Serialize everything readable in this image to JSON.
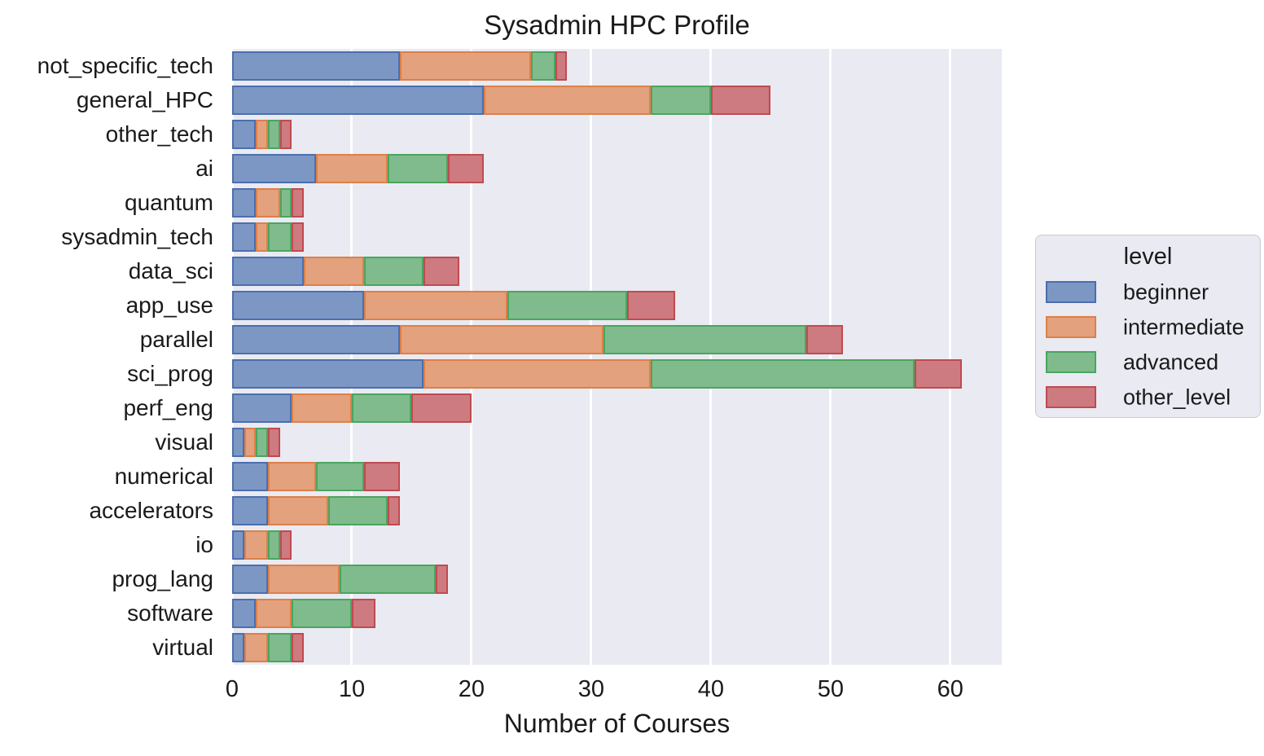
{
  "chart_data": {
    "type": "bar",
    "orientation": "horizontal",
    "stacked": true,
    "title": "Sysadmin HPC Profile",
    "xlabel": "Number of Courses",
    "ylabel": "",
    "xlim": [
      0,
      64.3
    ],
    "xticks": [
      0,
      10,
      20,
      30,
      40,
      50,
      60
    ],
    "grid": true,
    "plot_background": "#e9eaf2",
    "gridline_color": "#ffffff",
    "legend": {
      "title": "level",
      "position": "right"
    },
    "categories": [
      "not_specific_tech",
      "general_HPC",
      "other_tech",
      "ai",
      "quantum",
      "sysadmin_tech",
      "data_sci",
      "app_use",
      "parallel",
      "sci_prog",
      "perf_eng",
      "visual",
      "numerical",
      "accelerators",
      "io",
      "prog_lang",
      "software",
      "virtual"
    ],
    "series": [
      {
        "name": "beginner",
        "fill": "#7d97c5",
        "edge": "#4a6fad",
        "values": [
          14,
          21,
          2,
          7,
          2,
          2,
          6,
          11,
          14,
          16,
          5,
          1,
          3,
          3,
          1,
          3,
          2,
          1
        ]
      },
      {
        "name": "intermediate",
        "fill": "#e3a17d",
        "edge": "#dd8049",
        "values": [
          11,
          14,
          1,
          6,
          2,
          1,
          5,
          12,
          17,
          19,
          5,
          1,
          4,
          5,
          2,
          6,
          3,
          2
        ]
      },
      {
        "name": "advanced",
        "fill": "#80bb8d",
        "edge": "#4aa55f",
        "values": [
          2,
          5,
          1,
          5,
          1,
          2,
          5,
          10,
          17,
          22,
          5,
          1,
          4,
          5,
          1,
          8,
          5,
          2
        ]
      },
      {
        "name": "other_level",
        "fill": "#cd7b80",
        "edge": "#c04a50",
        "values": [
          1,
          5,
          1,
          3,
          1,
          1,
          3,
          4,
          3,
          4,
          5,
          1,
          3,
          1,
          1,
          1,
          2,
          1
        ]
      }
    ]
  }
}
